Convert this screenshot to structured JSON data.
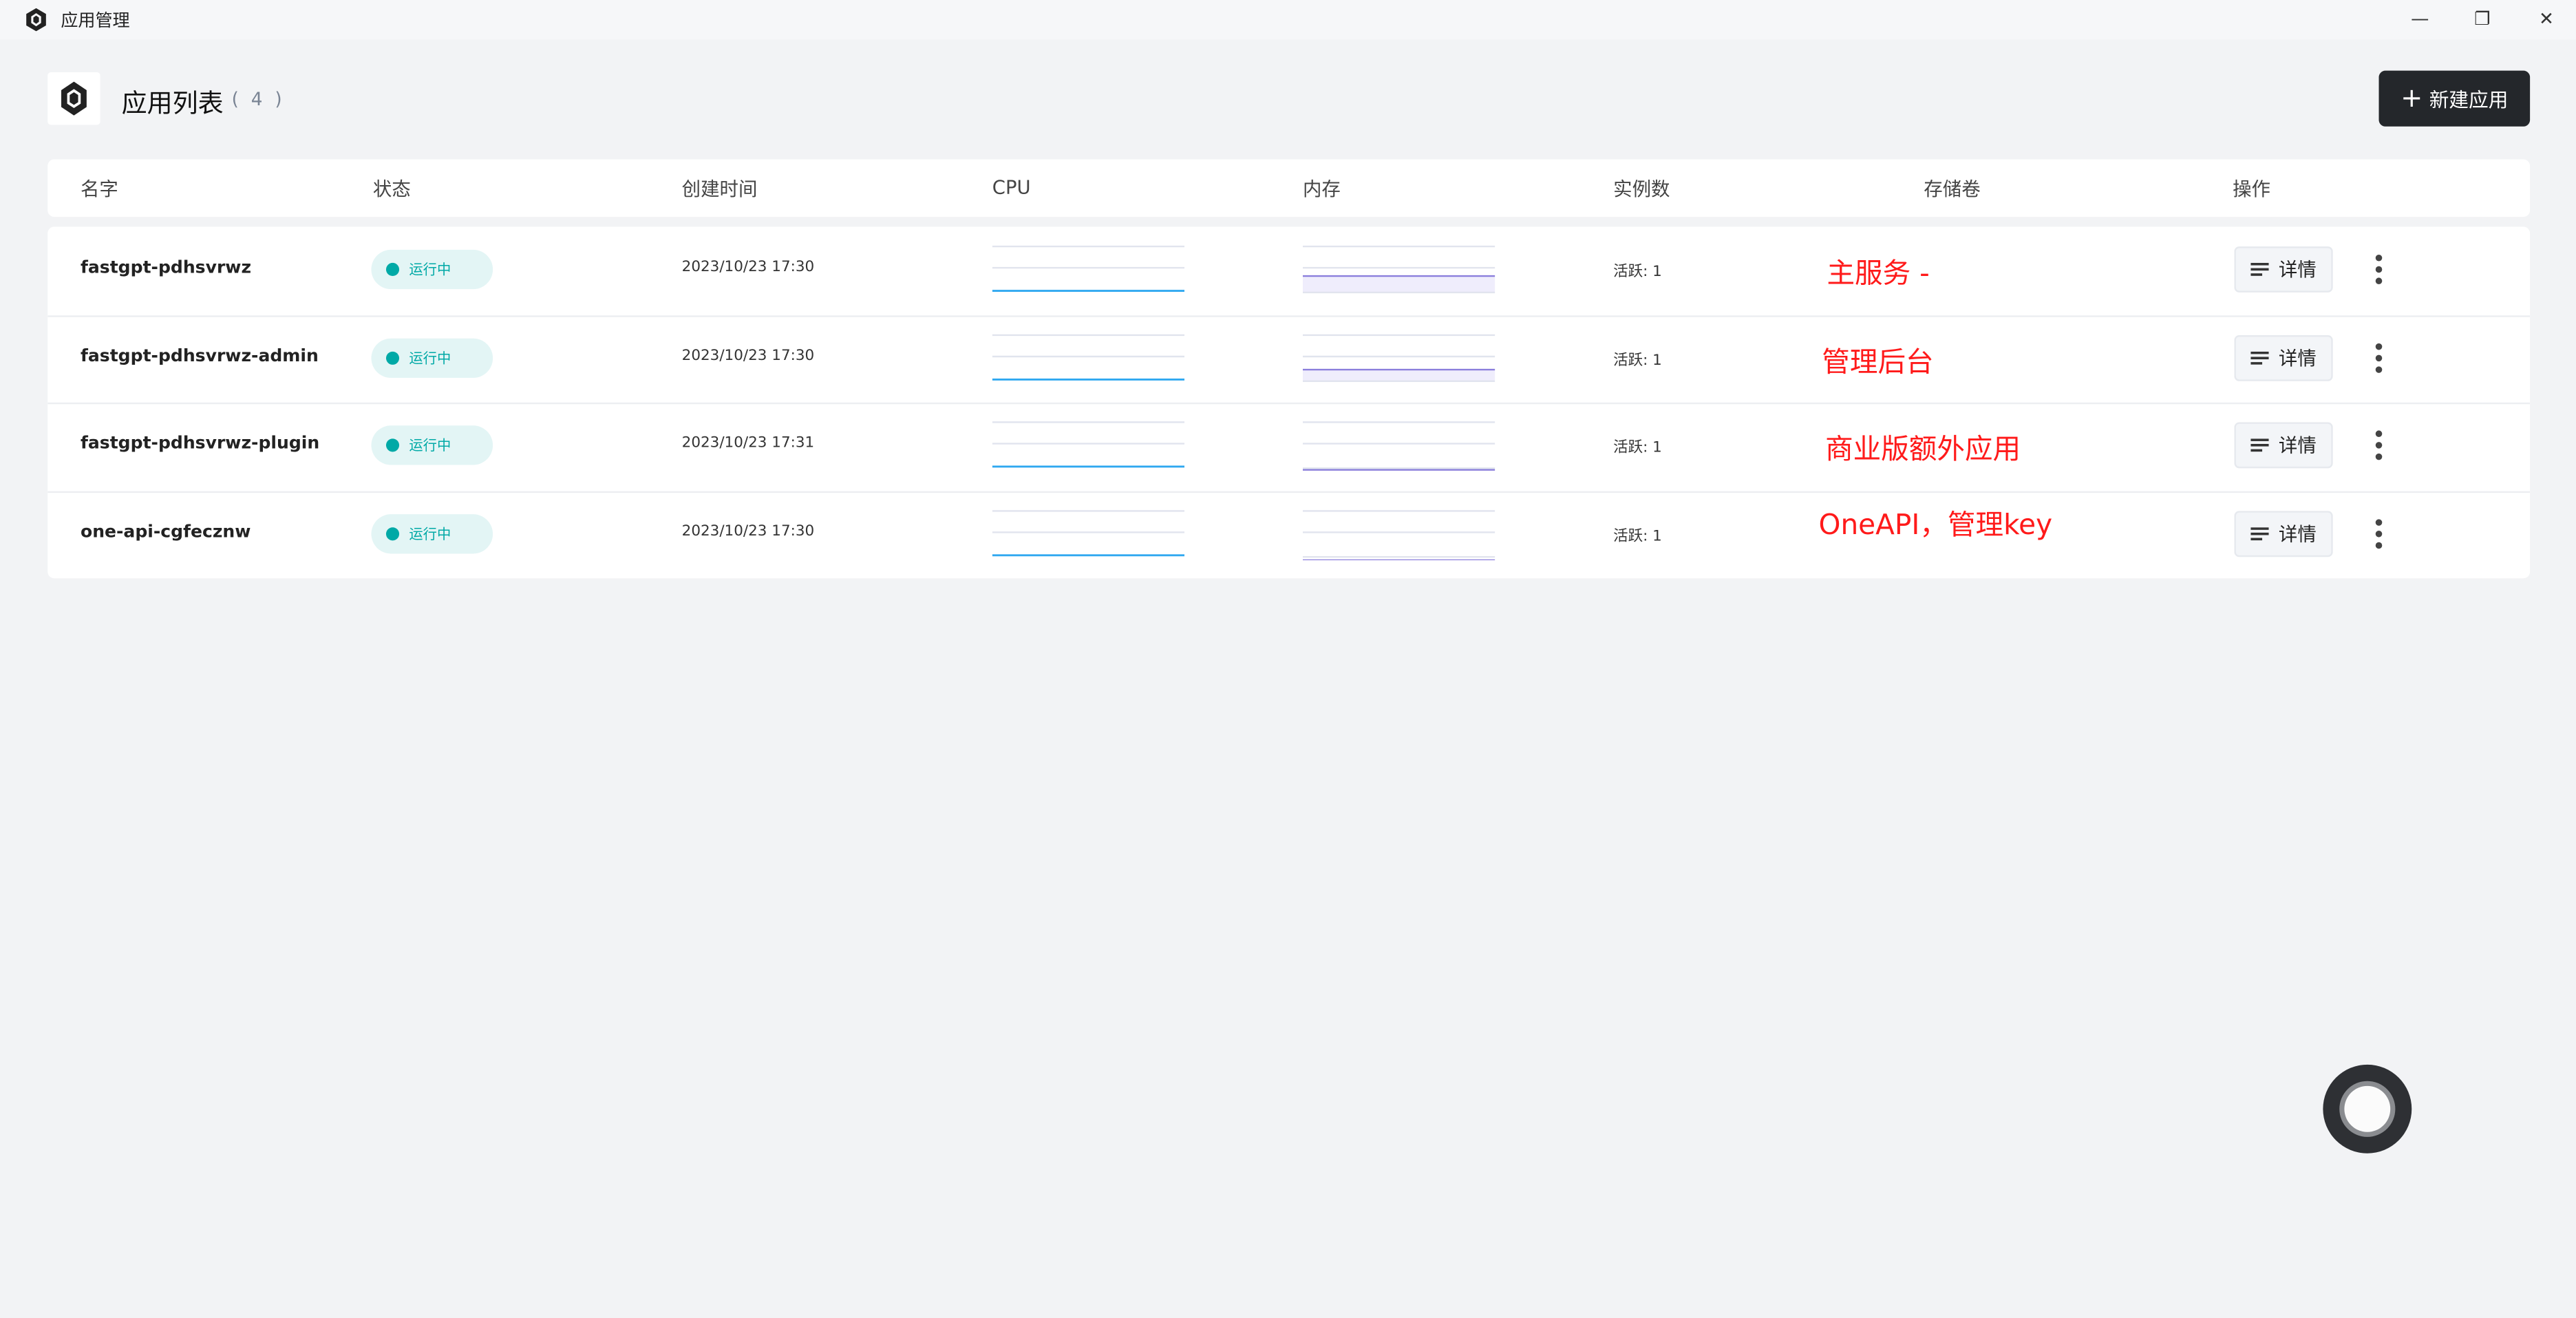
{
  "window": {
    "title": "应用管理",
    "controls": [
      "minimize",
      "restore",
      "close"
    ]
  },
  "header": {
    "title": "应用列表",
    "count": "( 4 )",
    "new_button": "新建应用"
  },
  "table": {
    "columns": [
      "名字",
      "状态",
      "创建时间",
      "CPU",
      "内存",
      "实例数",
      "存储卷",
      "操作"
    ],
    "rows": [
      {
        "name": "fastgpt-pdhsvrwz",
        "status": "运行中",
        "created": "2023/10/23 17:30",
        "replicas": "活跃: 1",
        "note": "主服务 -",
        "detail": "详情"
      },
      {
        "name": "fastgpt-pdhsvrwz-admin",
        "status": "运行中",
        "created": "2023/10/23 17:30",
        "replicas": "活跃: 1",
        "note": "管理后台",
        "detail": "详情"
      },
      {
        "name": "fastgpt-pdhsvrwz-plugin",
        "status": "运行中",
        "created": "2023/10/23 17:31",
        "replicas": "活跃: 1",
        "note": "商业版额外应用",
        "detail": "详情"
      },
      {
        "name": "one-api-cgfecznw",
        "status": "运行中",
        "created": "2023/10/23 17:30",
        "replicas": "活跃: 1",
        "note": "OneAPI，管理key",
        "detail": "详情"
      }
    ]
  },
  "colors": {
    "status_running": "#00a9a6",
    "cpu_line": "#2fa8f0",
    "memory_line": "#8b7fdc",
    "annotation": "#ff1a1a",
    "primary_button": "#24272b"
  }
}
